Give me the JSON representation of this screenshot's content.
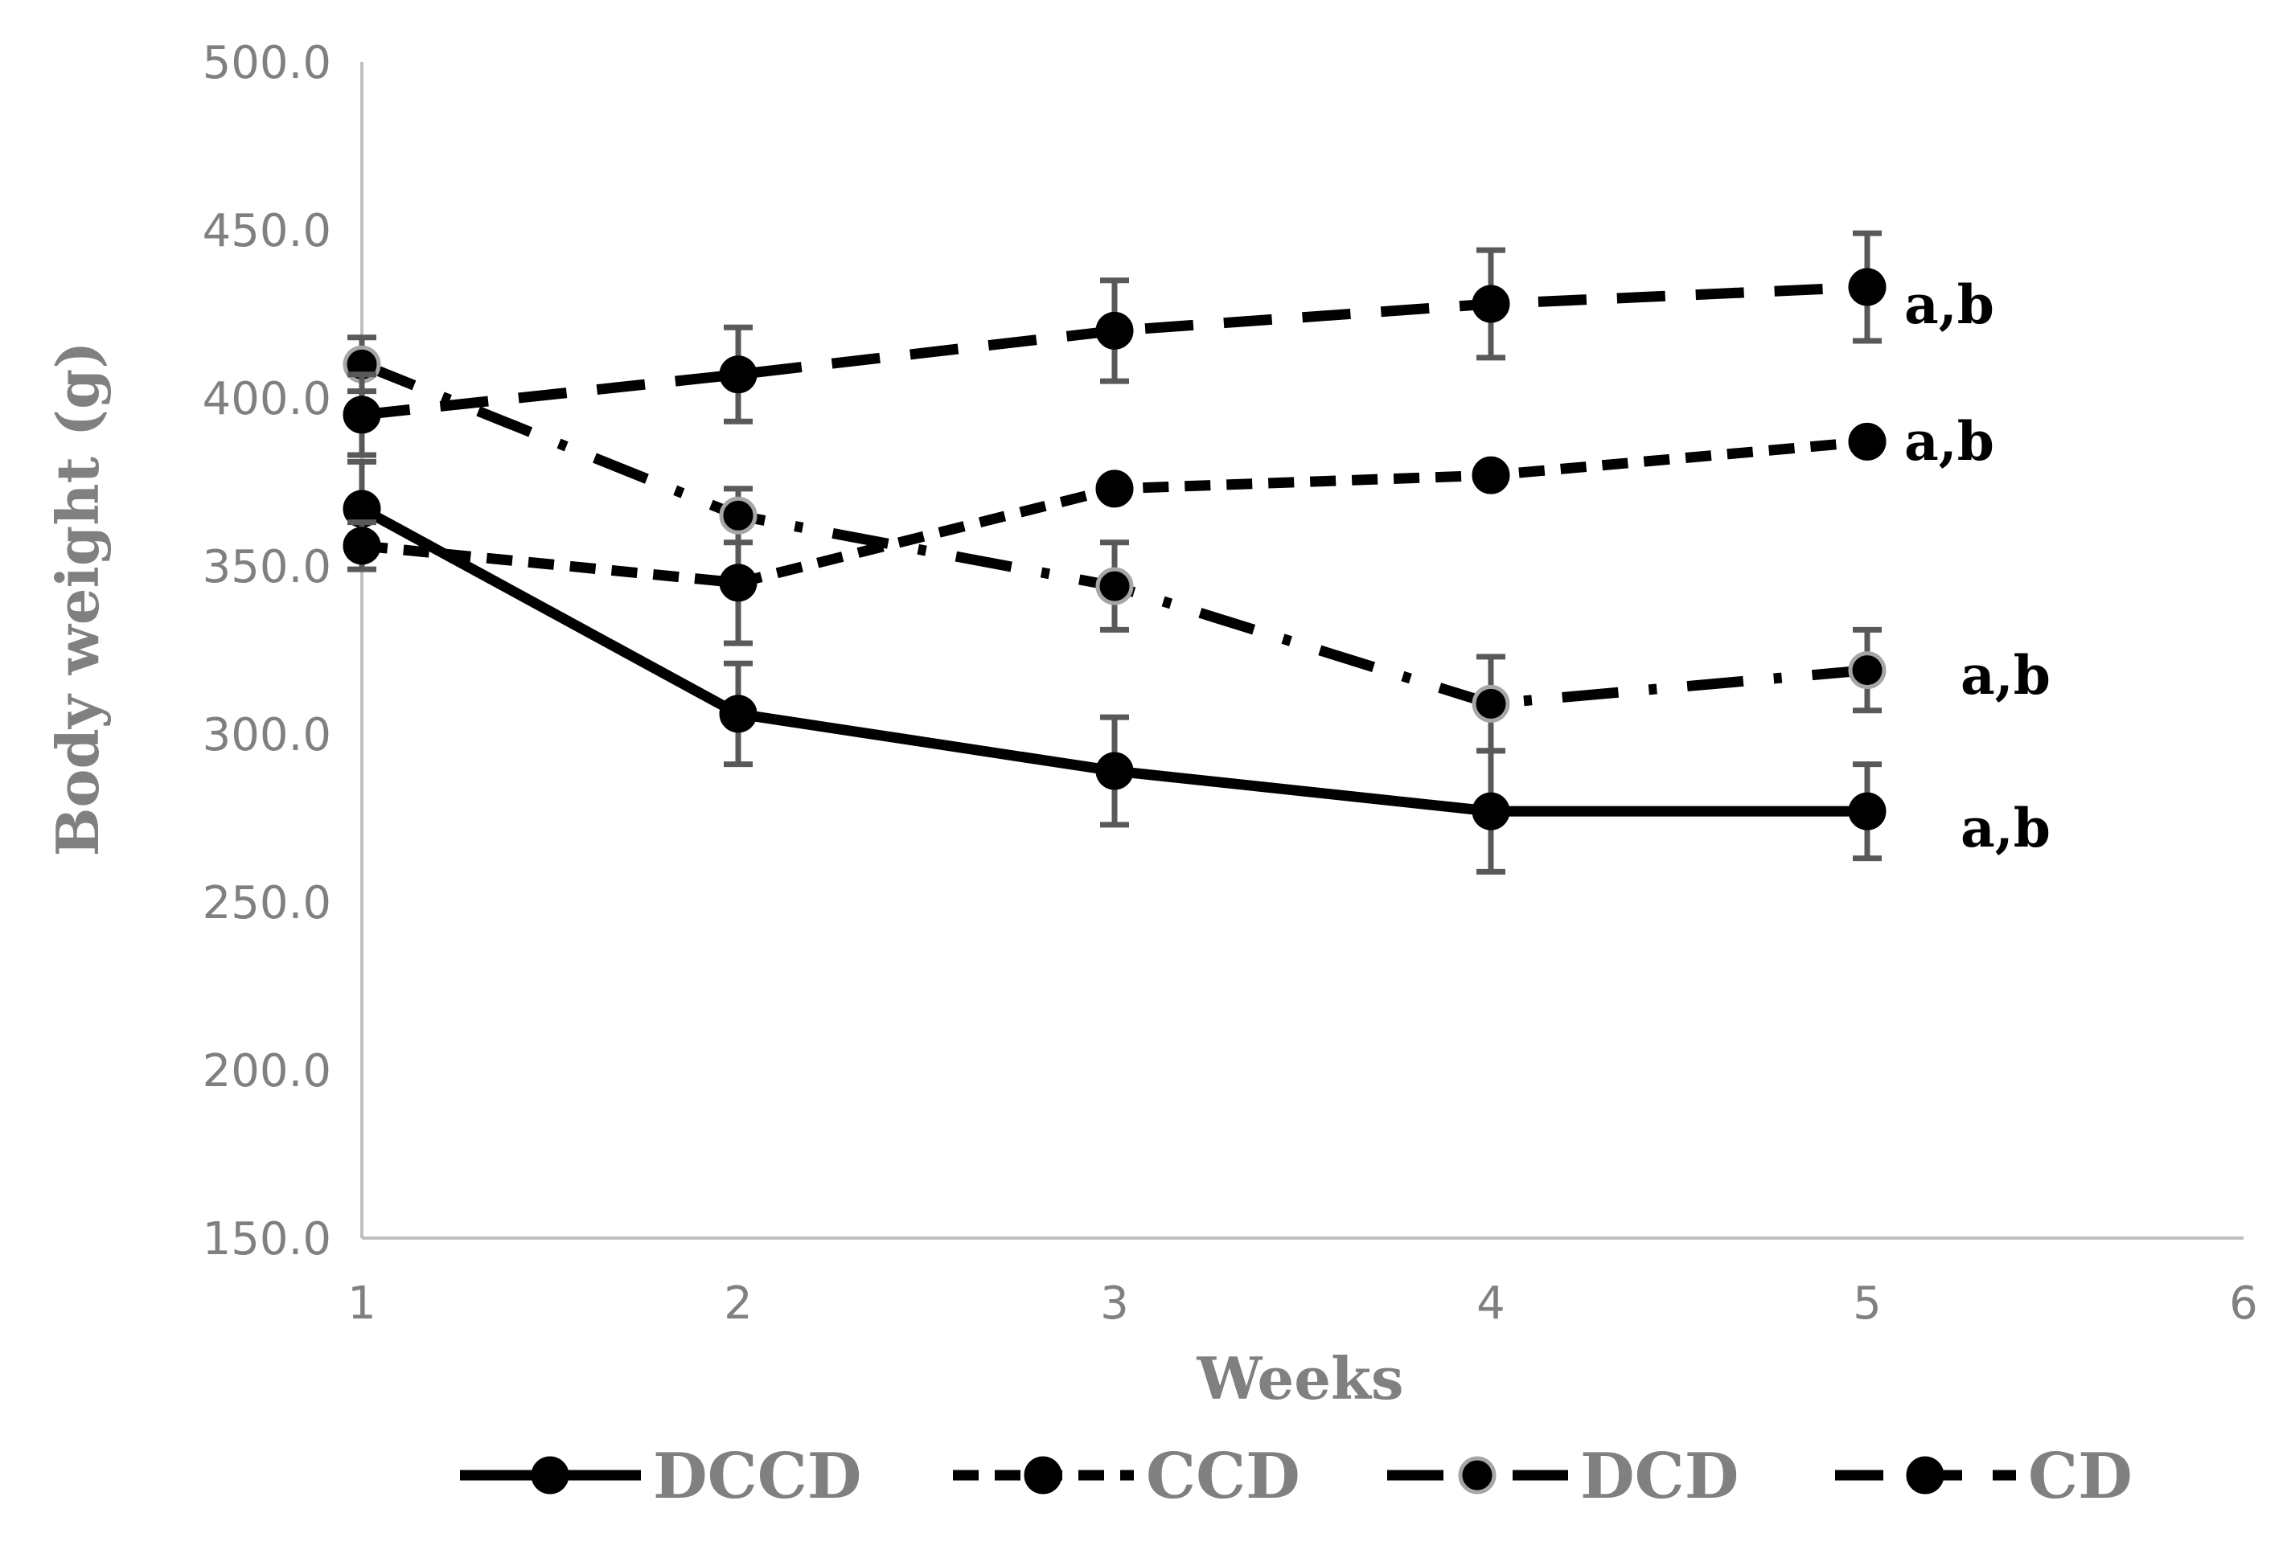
{
  "chart_data": {
    "type": "line",
    "title": "",
    "xlabel": "Weeks",
    "ylabel": "Body weight (g)",
    "xlim": [
      1,
      6
    ],
    "ylim": [
      150,
      500
    ],
    "x_ticks": [
      "1",
      "2",
      "3",
      "4",
      "5",
      "6"
    ],
    "y_ticks": [
      "150.0",
      "200.0",
      "250.0",
      "300.0",
      "350.0",
      "400.0",
      "450.0",
      "500.0"
    ],
    "x": [
      1,
      2,
      3,
      4,
      5
    ],
    "grid": false,
    "legend_position": "bottom",
    "series": [
      {
        "name": "DCCD",
        "style": "solid",
        "marker_fill": "#000000",
        "marker_edge": "#000000",
        "values": [
          367,
          306,
          289,
          277,
          277
        ],
        "errors": [
          14,
          15,
          16,
          18,
          14
        ],
        "annotation": "a,b"
      },
      {
        "name": "CCD",
        "style": "short-dash",
        "marker_fill": "#000000",
        "marker_edge": "#000000",
        "values": [
          356,
          345,
          373,
          377,
          387
        ],
        "errors": [
          7,
          18,
          0,
          0,
          0
        ],
        "annotation": "a,b"
      },
      {
        "name": "DCD",
        "style": "dash-dot",
        "marker_fill": "#000000",
        "marker_edge": "#a6a6a6",
        "values": [
          410,
          365,
          344,
          309,
          319
        ],
        "errors": [
          8,
          8,
          13,
          14,
          12
        ],
        "annotation": "a,b"
      },
      {
        "name": "CD",
        "style": "long-dash",
        "marker_fill": "#000000",
        "marker_edge": "#000000",
        "values": [
          395,
          407,
          420,
          428,
          433
        ],
        "errors": [
          12,
          14,
          15,
          16,
          16
        ],
        "annotation": "a,b"
      }
    ]
  }
}
